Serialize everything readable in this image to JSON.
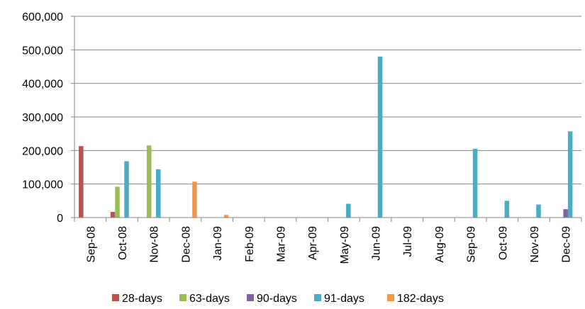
{
  "chart_data": {
    "type": "bar",
    "categories": [
      "Sep-08",
      "Oct-08",
      "Nov-08",
      "Dec-08",
      "Jan-09",
      "Feb-09",
      "Mar-09",
      "Apr-09",
      "May-09",
      "Jun-09",
      "Jul-09",
      "Aug-09",
      "Sep-09",
      "Oct-09",
      "Nov-09",
      "Dec-09"
    ],
    "series": [
      {
        "name": "28-days",
        "color": "#C0504D",
        "values": [
          213000,
          17000,
          0,
          0,
          0,
          0,
          0,
          0,
          0,
          0,
          0,
          0,
          0,
          0,
          0,
          0
        ]
      },
      {
        "name": "63-days",
        "color": "#9BBB59",
        "values": [
          0,
          92000,
          215000,
          0,
          0,
          0,
          0,
          0,
          0,
          0,
          0,
          0,
          0,
          0,
          0,
          0
        ]
      },
      {
        "name": "90-days",
        "color": "#8064A2",
        "values": [
          0,
          0,
          0,
          0,
          0,
          0,
          0,
          0,
          0,
          0,
          0,
          0,
          0,
          0,
          0,
          25000
        ]
      },
      {
        "name": "91-days",
        "color": "#4BACC6",
        "values": [
          0,
          168000,
          144000,
          0,
          0,
          0,
          0,
          0,
          41000,
          480000,
          0,
          0,
          205000,
          50000,
          39000,
          257000
        ]
      },
      {
        "name": "182-days",
        "color": "#F79646",
        "values": [
          0,
          0,
          0,
          107000,
          8000,
          0,
          0,
          0,
          0,
          0,
          0,
          0,
          0,
          0,
          0,
          0
        ]
      }
    ],
    "ylim": [
      0,
      600000
    ],
    "yticks": [
      0,
      100000,
      200000,
      300000,
      400000,
      500000,
      600000
    ],
    "ytick_labels": [
      "0",
      "100,000",
      "200,000",
      "300,000",
      "400,000",
      "500,000",
      "600,000"
    ],
    "grid": true,
    "legend": "bottom",
    "axis_color": "#868686",
    "grid_color": "#868686"
  }
}
